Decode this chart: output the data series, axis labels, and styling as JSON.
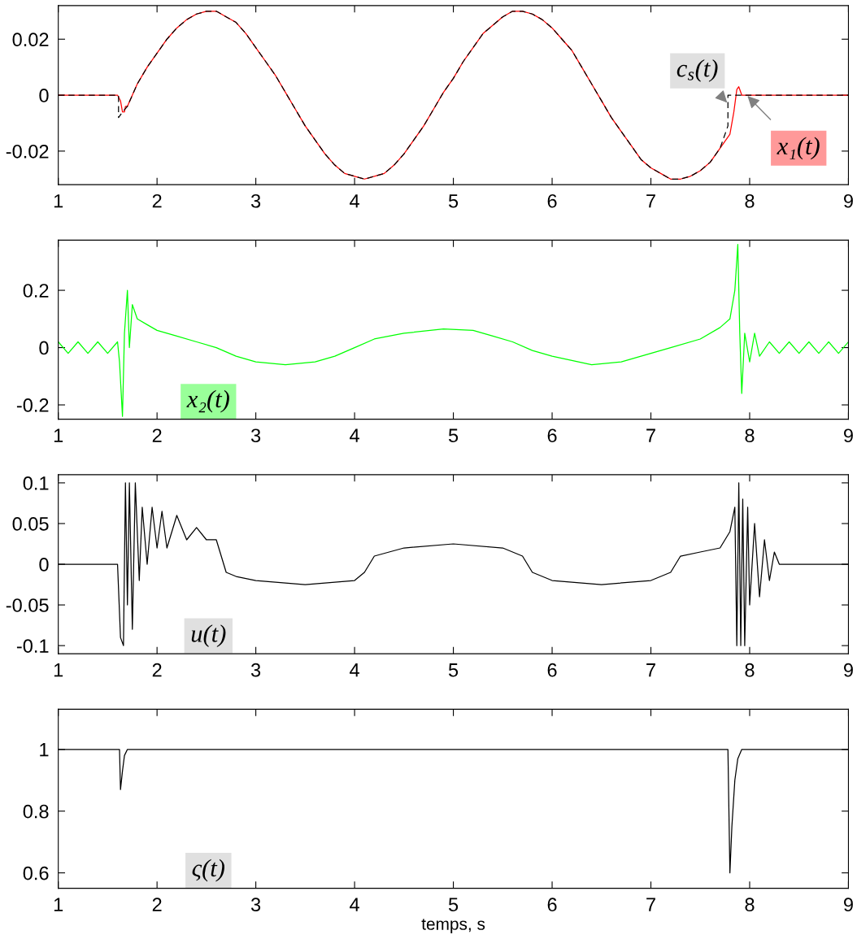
{
  "chart_data": [
    {
      "type": "line",
      "xlim": [
        1,
        9
      ],
      "xticks": [
        1,
        2,
        3,
        4,
        5,
        6,
        7,
        8,
        9
      ],
      "ylim": [
        -0.032,
        0.032
      ],
      "yticks": [
        -0.02,
        0,
        0.02
      ],
      "grid": false,
      "series": [
        {
          "color": "#000000",
          "line_style": "dashed",
          "x": [
            1.0,
            1.61,
            1.61,
            1.65,
            1.7,
            1.8,
            1.9,
            2.0,
            2.1,
            2.2,
            2.3,
            2.4,
            2.5,
            2.6,
            2.7,
            2.8,
            2.9,
            3.0,
            3.1,
            3.2,
            3.3,
            3.4,
            3.5,
            3.6,
            3.7,
            3.8,
            3.9,
            4.0,
            4.1,
            4.2,
            4.3,
            4.4,
            4.5,
            4.6,
            4.7,
            4.8,
            4.9,
            5.0,
            5.1,
            5.2,
            5.3,
            5.4,
            5.5,
            5.6,
            5.7,
            5.8,
            5.9,
            6.0,
            6.1,
            6.2,
            6.3,
            6.4,
            6.5,
            6.6,
            6.7,
            6.8,
            6.9,
            7.0,
            7.1,
            7.2,
            7.3,
            7.4,
            7.5,
            7.6,
            7.7,
            7.78,
            7.78,
            9.0
          ],
          "values": [
            0,
            0,
            -0.008,
            -0.006,
            -0.004,
            0.004,
            0.01,
            0.015,
            0.02,
            0.024,
            0.027,
            0.029,
            0.03,
            0.03,
            0.028,
            0.026,
            0.022,
            0.017,
            0.012,
            0.007,
            0.001,
            -0.005,
            -0.011,
            -0.016,
            -0.021,
            -0.025,
            -0.028,
            -0.029,
            -0.03,
            -0.029,
            -0.028,
            -0.025,
            -0.021,
            -0.016,
            -0.011,
            -0.005,
            0.001,
            0.006,
            0.012,
            0.017,
            0.022,
            0.025,
            0.028,
            0.03,
            0.03,
            0.029,
            0.027,
            0.024,
            0.02,
            0.016,
            0.01,
            0.004,
            -0.002,
            -0.008,
            -0.013,
            -0.018,
            -0.023,
            -0.026,
            -0.028,
            -0.03,
            -0.03,
            -0.029,
            -0.027,
            -0.024,
            -0.019,
            -0.011,
            0,
            0
          ]
        },
        {
          "color": "#ff0000",
          "x": [
            1.0,
            1.6,
            1.63,
            1.65,
            1.67,
            1.68,
            1.7,
            1.8,
            1.9,
            2.0,
            2.1,
            2.2,
            2.3,
            2.4,
            2.5,
            2.6,
            2.7,
            2.8,
            2.9,
            3.0,
            3.1,
            3.2,
            3.3,
            3.4,
            3.5,
            3.6,
            3.7,
            3.8,
            3.9,
            4.0,
            4.1,
            4.2,
            4.3,
            4.4,
            4.5,
            4.6,
            4.7,
            4.8,
            4.9,
            5.0,
            5.1,
            5.2,
            5.3,
            5.4,
            5.5,
            5.6,
            5.7,
            5.8,
            5.9,
            6.0,
            6.1,
            6.2,
            6.3,
            6.4,
            6.5,
            6.6,
            6.7,
            6.8,
            6.9,
            7.0,
            7.1,
            7.2,
            7.3,
            7.4,
            7.5,
            7.6,
            7.7,
            7.8,
            7.84,
            7.87,
            7.89,
            7.92,
            8.0,
            9.0
          ],
          "values": [
            0,
            0,
            -0.002,
            -0.006,
            -0.006,
            -0.004,
            -0.004,
            0.004,
            0.01,
            0.015,
            0.02,
            0.024,
            0.027,
            0.029,
            0.03,
            0.03,
            0.028,
            0.026,
            0.022,
            0.017,
            0.012,
            0.007,
            0.001,
            -0.005,
            -0.011,
            -0.016,
            -0.021,
            -0.025,
            -0.028,
            -0.029,
            -0.03,
            -0.029,
            -0.028,
            -0.025,
            -0.021,
            -0.016,
            -0.011,
            -0.005,
            0.001,
            0.006,
            0.012,
            0.017,
            0.022,
            0.025,
            0.028,
            0.03,
            0.03,
            0.029,
            0.027,
            0.024,
            0.02,
            0.016,
            0.01,
            0.004,
            -0.002,
            -0.008,
            -0.013,
            -0.018,
            -0.023,
            -0.026,
            -0.028,
            -0.03,
            -0.03,
            -0.029,
            -0.027,
            -0.024,
            -0.019,
            -0.014,
            -0.006,
            0.002,
            0.003,
            0,
            0,
            0
          ]
        }
      ],
      "annotations": [
        {
          "text": "c$_{s}$(t)",
          "x": 7.78,
          "y": -0.003
        },
        {
          "text": "x₁(t)",
          "x": 7.97,
          "y": 0
        }
      ]
    },
    {
      "type": "line",
      "xlim": [
        1,
        9
      ],
      "xticks": [
        1,
        2,
        3,
        4,
        5,
        6,
        7,
        8,
        9
      ],
      "ylim": [
        -0.25,
        0.375
      ],
      "yticks": [
        -0.2,
        0,
        0.2
      ],
      "grid": false,
      "series": [
        {
          "color": "#00ff00",
          "x": [
            1.0,
            1.1,
            1.2,
            1.3,
            1.4,
            1.5,
            1.6,
            1.62,
            1.65,
            1.67,
            1.7,
            1.72,
            1.75,
            1.8,
            1.9,
            2.0,
            2.2,
            2.4,
            2.6,
            2.8,
            3.0,
            3.3,
            3.6,
            3.8,
            4.0,
            4.2,
            4.5,
            4.9,
            5.2,
            5.4,
            5.6,
            5.8,
            6.0,
            6.4,
            6.7,
            7.0,
            7.2,
            7.5,
            7.7,
            7.8,
            7.85,
            7.88,
            7.9,
            7.92,
            7.95,
            8.0,
            8.05,
            8.1,
            8.2,
            8.3,
            8.4,
            8.5,
            8.6,
            8.7,
            8.8,
            8.9,
            9.0
          ],
          "values": [
            0.02,
            -0.02,
            0.02,
            -0.02,
            0.02,
            -0.02,
            0.02,
            -0.05,
            -0.24,
            0.05,
            0.2,
            0.0,
            0.15,
            0.1,
            0.08,
            0.06,
            0.04,
            0.02,
            0.0,
            -0.03,
            -0.05,
            -0.06,
            -0.05,
            -0.03,
            0.0,
            0.03,
            0.05,
            0.065,
            0.06,
            0.04,
            0.02,
            -0.01,
            -0.03,
            -0.06,
            -0.05,
            -0.02,
            0.0,
            0.03,
            0.07,
            0.1,
            0.2,
            0.36,
            0.05,
            -0.16,
            0.05,
            -0.05,
            0.05,
            -0.03,
            0.02,
            -0.02,
            0.02,
            -0.02,
            0.02,
            -0.02,
            0.02,
            -0.02,
            0.02
          ]
        }
      ],
      "annotations": [
        "x₂(t)"
      ]
    },
    {
      "type": "line",
      "xlim": [
        1,
        9
      ],
      "xticks": [
        1,
        2,
        3,
        4,
        5,
        6,
        7,
        8,
        9
      ],
      "ylim": [
        -0.11,
        0.11
      ],
      "yticks": [
        -0.1,
        -0.05,
        0,
        0.05,
        0.1
      ],
      "grid": false,
      "series": [
        {
          "color": "#000000",
          "x": [
            1.0,
            1.6,
            1.63,
            1.66,
            1.68,
            1.7,
            1.72,
            1.75,
            1.78,
            1.82,
            1.85,
            1.9,
            1.95,
            2.0,
            2.05,
            2.1,
            2.2,
            2.3,
            2.4,
            2.5,
            2.6,
            2.7,
            2.8,
            3.0,
            3.5,
            4.0,
            4.1,
            4.2,
            4.5,
            5.0,
            5.5,
            5.7,
            5.8,
            6.0,
            6.5,
            7.0,
            7.2,
            7.3,
            7.5,
            7.7,
            7.8,
            7.85,
            7.87,
            7.89,
            7.91,
            7.93,
            7.95,
            7.98,
            8.0,
            8.05,
            8.1,
            8.15,
            8.2,
            8.25,
            8.3,
            9.0
          ],
          "values": [
            0,
            0,
            -0.09,
            -0.1,
            0.1,
            -0.05,
            0.1,
            -0.08,
            0.1,
            -0.02,
            0.07,
            0.0,
            0.07,
            0.02,
            0.065,
            0.02,
            0.06,
            0.03,
            0.045,
            0.03,
            0.03,
            -0.01,
            -0.015,
            -0.02,
            -0.025,
            -0.02,
            -0.01,
            0.01,
            0.02,
            0.025,
            0.02,
            0.01,
            -0.01,
            -0.02,
            -0.025,
            -0.02,
            -0.01,
            0.01,
            0.015,
            0.02,
            0.04,
            0.07,
            -0.1,
            0.1,
            -0.1,
            0.08,
            -0.1,
            0.07,
            -0.05,
            0.05,
            -0.04,
            0.03,
            -0.02,
            0.015,
            0,
            0
          ]
        }
      ],
      "annotations": [
        "u(t)"
      ]
    },
    {
      "type": "line",
      "xlim": [
        1,
        9
      ],
      "xticks": [
        1,
        2,
        3,
        4,
        5,
        6,
        7,
        8,
        9
      ],
      "ylim": [
        0.55,
        1.13
      ],
      "yticks": [
        0.6,
        0.8,
        1
      ],
      "grid": false,
      "xlabel": "temps, s",
      "series": [
        {
          "color": "#000000",
          "x": [
            1.0,
            1.62,
            1.63,
            1.65,
            1.67,
            1.7,
            7.78,
            7.8,
            7.82,
            7.85,
            7.88,
            7.92,
            9.0
          ],
          "values": [
            1,
            1,
            0.87,
            0.93,
            0.98,
            1,
            1,
            0.6,
            0.75,
            0.9,
            0.97,
            1,
            1
          ]
        }
      ],
      "annotations": [
        "ς(t)"
      ]
    }
  ]
}
